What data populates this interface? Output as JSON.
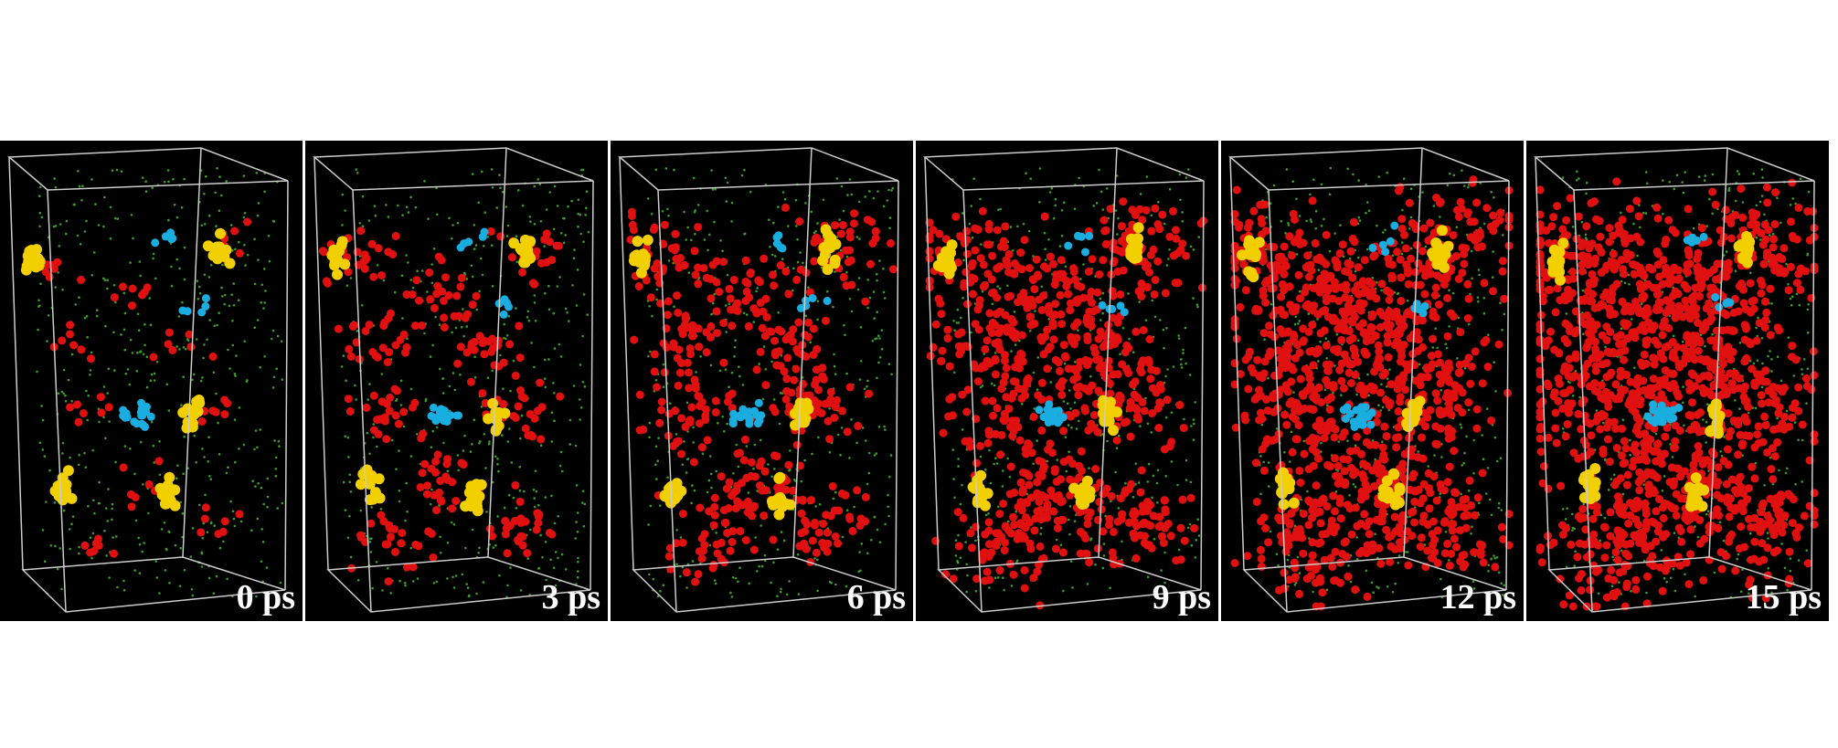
{
  "panels": [
    {
      "label": "0 ps"
    },
    {
      "label": "3 ps"
    },
    {
      "label": "6 ps"
    },
    {
      "label": "9 ps"
    },
    {
      "label": "12 ps"
    },
    {
      "label": "15 ps"
    }
  ]
}
